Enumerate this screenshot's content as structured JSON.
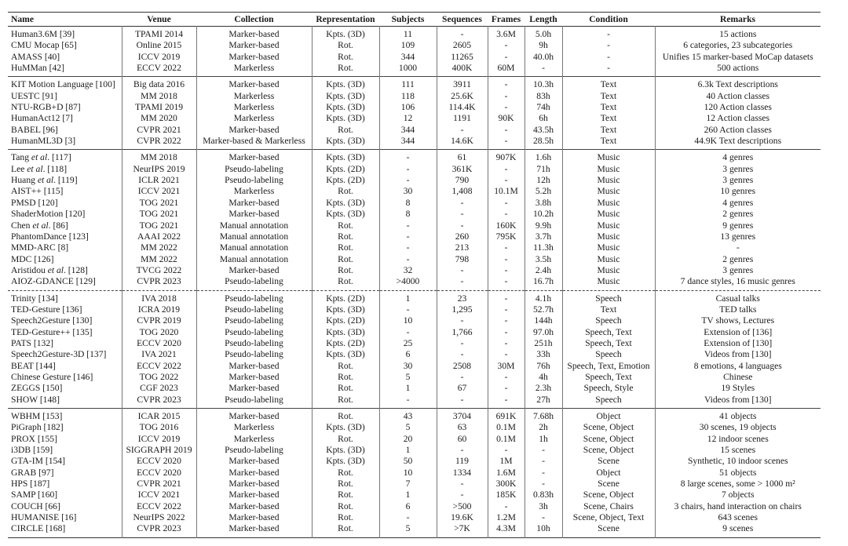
{
  "headers": [
    "Name",
    "Venue",
    "Collection",
    "Representation",
    "Subjects",
    "Sequences",
    "Frames",
    "Length",
    "Condition",
    "Remarks"
  ],
  "groups": [
    {
      "separator": "solid",
      "rows": [
        [
          "Human3.6M [39]",
          "TPAMI 2014",
          "Marker-based",
          "Kpts. (3D)",
          "11",
          "-",
          "3.6M",
          "5.0h",
          "-",
          "15 actions"
        ],
        [
          "CMU Mocap [65]",
          "Online 2015",
          "Marker-based",
          "Rot.",
          "109",
          "2605",
          "-",
          "9h",
          "-",
          "6 categories, 23 subcategories"
        ],
        [
          "AMASS [40]",
          "ICCV 2019",
          "Marker-based",
          "Rot.",
          "344",
          "11265",
          "-",
          "40.0h",
          "-",
          "Unifies 15 marker-based MoCap datasets"
        ],
        [
          "HuMMan [42]",
          "ECCV 2022",
          "Markerless",
          "Rot.",
          "1000",
          "400K",
          "60M",
          "-",
          "-",
          "500 actions"
        ]
      ]
    },
    {
      "separator": "solid",
      "rows": [
        [
          "KIT Motion Language [100]",
          "Big data 2016",
          "Marker-based",
          "Kpts. (3D)",
          "111",
          "3911",
          "-",
          "10.3h",
          "Text",
          "6.3k Text descriptions"
        ],
        [
          "UESTC [91]",
          "MM 2018",
          "Markerless",
          "Kpts. (3D)",
          "118",
          "25.6K",
          "-",
          "83h",
          "Text",
          "40 Action classes"
        ],
        [
          "NTU-RGB+D [87]",
          "TPAMI 2019",
          "Markerless",
          "Kpts. (3D)",
          "106",
          "114.4K",
          "-",
          "74h",
          "Text",
          "120 Action classes"
        ],
        [
          "HumanAct12 [7]",
          "MM 2020",
          "Markerless",
          "Kpts. (3D)",
          "12",
          "1191",
          "90K",
          "6h",
          "Text",
          "12 Action classes"
        ],
        [
          "BABEL [96]",
          "CVPR 2021",
          "Marker-based",
          "Rot.",
          "344",
          "-",
          "-",
          "43.5h",
          "Text",
          "260 Action classes"
        ],
        [
          "HumanML3D [3]",
          "CVPR 2022",
          "Marker-based & Markerless",
          "Kpts. (3D)",
          "344",
          "14.6K",
          "-",
          "28.5h",
          "Text",
          "44.9K Text descriptions"
        ]
      ]
    },
    {
      "separator": "solid",
      "rows": [
        [
          "Tang et al. [117]",
          "MM 2018",
          "Marker-based",
          "Kpts. (3D)",
          "-",
          "61",
          "907K",
          "1.6h",
          "Music",
          "4 genres"
        ],
        [
          "Lee et al. [118]",
          "NeurIPS 2019",
          "Pseudo-labeling",
          "Kpts. (2D)",
          "-",
          "361K",
          "-",
          "71h",
          "Music",
          "3 genres"
        ],
        [
          "Huang et al. [119]",
          "ICLR 2021",
          "Pseudo-labeling",
          "Kpts. (2D)",
          "-",
          "790",
          "-",
          "12h",
          "Music",
          "3 genres"
        ],
        [
          "AIST++ [115]",
          "ICCV 2021",
          "Markerless",
          "Rot.",
          "30",
          "1,408",
          "10.1M",
          "5.2h",
          "Music",
          "10 genres"
        ],
        [
          "PMSD [120]",
          "TOG 2021",
          "Marker-based",
          "Kpts. (3D)",
          "8",
          "-",
          "-",
          "3.8h",
          "Music",
          "4 genres"
        ],
        [
          "ShaderMotion [120]",
          "TOG 2021",
          "Marker-based",
          "Kpts. (3D)",
          "8",
          "-",
          "-",
          "10.2h",
          "Music",
          "2 genres"
        ],
        [
          "Chen et al. [86]",
          "TOG 2021",
          "Manual annotation",
          "Rot.",
          "-",
          "-",
          "160K",
          "9.9h",
          "Music",
          "9 genres"
        ],
        [
          "PhantomDance [123]",
          "AAAI 2022",
          "Manual annotation",
          "Rot.",
          "-",
          "260",
          "795K",
          "3.7h",
          "Music",
          "13 genres"
        ],
        [
          "MMD-ARC [8]",
          "MM 2022",
          "Manual annotation",
          "Rot.",
          "-",
          "213",
          "-",
          "11.3h",
          "Music",
          "-"
        ],
        [
          "MDC [126]",
          "MM 2022",
          "Manual annotation",
          "Rot.",
          "-",
          "798",
          "-",
          "3.5h",
          "Music",
          "2 genres"
        ],
        [
          "Aristidou et al. [128]",
          "TVCG 2022",
          "Marker-based",
          "Rot.",
          "32",
          "-",
          "-",
          "2.4h",
          "Music",
          "3 genres"
        ],
        [
          "AIOZ-GDANCE [129]",
          "CVPR 2023",
          "Pseudo-labeling",
          "Rot.",
          ">4000",
          "-",
          "-",
          "16.7h",
          "Music",
          "7 dance styles, 16 music genres"
        ]
      ]
    },
    {
      "separator": "dashed",
      "rows": [
        [
          "Trinity [134]",
          "IVA 2018",
          "Pseudo-labeling",
          "Kpts. (2D)",
          "1",
          "23",
          "-",
          "4.1h",
          "Speech",
          "Casual talks"
        ],
        [
          "TED-Gesture [136]",
          "ICRA 2019",
          "Pseudo-labeling",
          "Kpts. (3D)",
          "-",
          "1,295",
          "-",
          "52.7h",
          "Text",
          "TED talks"
        ],
        [
          "Speech2Gesture [130]",
          "CVPR 2019",
          "Pseudo-labeling",
          "Kpts. (2D)",
          "10",
          "-",
          "-",
          "144h",
          "Speech",
          "TV shows, Lectures"
        ],
        [
          "TED-Gesture++ [135]",
          "TOG 2020",
          "Pseudo-labeling",
          "Kpts. (3D)",
          "-",
          "1,766",
          "-",
          "97.0h",
          "Speech, Text",
          "Extension of  [136]"
        ],
        [
          "PATS [132]",
          "ECCV 2020",
          "Pseudo-labeling",
          "Kpts. (2D)",
          "25",
          "-",
          "-",
          "251h",
          "Speech, Text",
          "Extension of  [130]"
        ],
        [
          "Speech2Gesture-3D [137]",
          "IVA 2021",
          "Pseudo-labeling",
          "Kpts. (3D)",
          "6",
          "-",
          "-",
          "33h",
          "Speech",
          "Videos from  [130]"
        ],
        [
          "BEAT [144]",
          "ECCV 2022",
          "Marker-based",
          "Rot.",
          "30",
          "2508",
          "30M",
          "76h",
          "Speech, Text, Emotion",
          "8 emotions, 4 languages"
        ],
        [
          "Chinese Gesture [146]",
          "TOG 2022",
          "Marker-based",
          "Rot.",
          "5",
          "-",
          "-",
          "4h",
          "Speech, Text",
          "Chinese"
        ],
        [
          "ZEGGS [150]",
          "CGF 2023",
          "Marker-based",
          "Rot.",
          "1",
          "67",
          "-",
          "2.3h",
          "Speech, Style",
          "19 Styles"
        ],
        [
          "SHOW [148]",
          "CVPR 2023",
          "Pseudo-labeling",
          "Rot.",
          "-",
          "-",
          "-",
          "27h",
          "Speech",
          "Videos from  [130]"
        ]
      ]
    },
    {
      "separator": "solid",
      "rows": [
        [
          "WBHM [153]",
          "ICAR 2015",
          "Marker-based",
          "Rot.",
          "43",
          "3704",
          "691K",
          "7.68h",
          "Object",
          "41 objects"
        ],
        [
          "PiGraph [182]",
          "TOG 2016",
          "Markerless",
          "Kpts. (3D)",
          "5",
          "63",
          "0.1M",
          "2h",
          "Scene, Object",
          "30 scenes, 19 objects"
        ],
        [
          "PROX [155]",
          "ICCV 2019",
          "Markerless",
          "Rot.",
          "20",
          "60",
          "0.1M",
          "1h",
          "Scene, Object",
          "12 indoor scenes"
        ],
        [
          "i3DB [159]",
          "SIGGRAPH 2019",
          "Pseudo-labeling",
          "Kpts. (3D)",
          "1",
          "-",
          "-",
          "-",
          "Scene, Object",
          "15 scenes"
        ],
        [
          "GTA-IM [154]",
          "ECCV 2020",
          "Marker-based",
          "Kpts. (3D)",
          "50",
          "119",
          "1M",
          "-",
          "Scene",
          "Synthetic, 10 indoor scenes"
        ],
        [
          "GRAB [97]",
          "ECCV 2020",
          "Marker-based",
          "Rot.",
          "10",
          "1334",
          "1.6M",
          "-",
          "Object",
          "51 objects"
        ],
        [
          "HPS [187]",
          "CVPR 2021",
          "Marker-based",
          "Rot.",
          "7",
          "-",
          "300K",
          "-",
          "Scene",
          "8 large scenes, some > 1000 m²"
        ],
        [
          "SAMP [160]",
          "ICCV 2021",
          "Marker-based",
          "Rot.",
          "1",
          "-",
          "185K",
          "0.83h",
          "Scene, Object",
          "7 objects"
        ],
        [
          "COUCH [66]",
          "ECCV 2022",
          "Marker-based",
          "Rot.",
          "6",
          ">500",
          "-",
          "3h",
          "Scene, Chairs",
          "3 chairs, hand interaction on chairs"
        ],
        [
          "HUMANISE [16]",
          "NeurIPS 2022",
          "Marker-based",
          "Rot.",
          "-",
          "19.6K",
          "1.2M",
          "-",
          "Scene, Object, Text",
          "643 scenes"
        ],
        [
          "CIRCLE [168]",
          "CVPR 2023",
          "Marker-based",
          "Rot.",
          "5",
          ">7K",
          "4.3M",
          "10h",
          "Scene",
          "9 scenes"
        ]
      ]
    }
  ]
}
